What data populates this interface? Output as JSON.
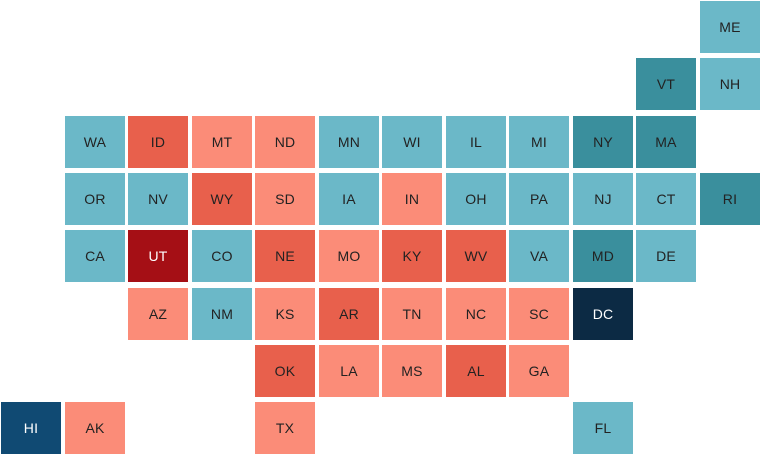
{
  "palette": {
    "dark-red": "#a50f15",
    "red": "#e8604c",
    "light-red": "#fb8c78",
    "light-blue": "#6bb8c8",
    "mid-blue": "#3a8f9d",
    "dark-blue": "#104a73",
    "navy": "#0c2a44"
  },
  "text_colors": {
    "dark-red": "#ffffff",
    "red": "#222222",
    "light-red": "#222222",
    "light-blue": "#222222",
    "mid-blue": "#222222",
    "dark-blue": "#ffffff",
    "navy": "#ffffff"
  },
  "states": [
    {
      "abbr": "ME",
      "row": 0,
      "col": 11,
      "shade": "light-blue"
    },
    {
      "abbr": "VT",
      "row": 1,
      "col": 10,
      "shade": "mid-blue"
    },
    {
      "abbr": "NH",
      "row": 1,
      "col": 11,
      "shade": "light-blue"
    },
    {
      "abbr": "WA",
      "row": 2,
      "col": 1,
      "shade": "light-blue"
    },
    {
      "abbr": "ID",
      "row": 2,
      "col": 2,
      "shade": "red"
    },
    {
      "abbr": "MT",
      "row": 2,
      "col": 3,
      "shade": "light-red"
    },
    {
      "abbr": "ND",
      "row": 2,
      "col": 4,
      "shade": "light-red"
    },
    {
      "abbr": "MN",
      "row": 2,
      "col": 5,
      "shade": "light-blue"
    },
    {
      "abbr": "WI",
      "row": 2,
      "col": 6,
      "shade": "light-blue"
    },
    {
      "abbr": "IL",
      "row": 2,
      "col": 7,
      "shade": "light-blue"
    },
    {
      "abbr": "MI",
      "row": 2,
      "col": 8,
      "shade": "light-blue"
    },
    {
      "abbr": "NY",
      "row": 2,
      "col": 9,
      "shade": "mid-blue"
    },
    {
      "abbr": "MA",
      "row": 2,
      "col": 10,
      "shade": "mid-blue"
    },
    {
      "abbr": "OR",
      "row": 3,
      "col": 1,
      "shade": "light-blue"
    },
    {
      "abbr": "NV",
      "row": 3,
      "col": 2,
      "shade": "light-blue"
    },
    {
      "abbr": "WY",
      "row": 3,
      "col": 3,
      "shade": "red"
    },
    {
      "abbr": "SD",
      "row": 3,
      "col": 4,
      "shade": "light-red"
    },
    {
      "abbr": "IA",
      "row": 3,
      "col": 5,
      "shade": "light-blue"
    },
    {
      "abbr": "IN",
      "row": 3,
      "col": 6,
      "shade": "light-red"
    },
    {
      "abbr": "OH",
      "row": 3,
      "col": 7,
      "shade": "light-blue"
    },
    {
      "abbr": "PA",
      "row": 3,
      "col": 8,
      "shade": "light-blue"
    },
    {
      "abbr": "NJ",
      "row": 3,
      "col": 9,
      "shade": "light-blue"
    },
    {
      "abbr": "CT",
      "row": 3,
      "col": 10,
      "shade": "light-blue"
    },
    {
      "abbr": "RI",
      "row": 3,
      "col": 11,
      "shade": "mid-blue"
    },
    {
      "abbr": "CA",
      "row": 4,
      "col": 1,
      "shade": "light-blue"
    },
    {
      "abbr": "UT",
      "row": 4,
      "col": 2,
      "shade": "dark-red"
    },
    {
      "abbr": "CO",
      "row": 4,
      "col": 3,
      "shade": "light-blue"
    },
    {
      "abbr": "NE",
      "row": 4,
      "col": 4,
      "shade": "red"
    },
    {
      "abbr": "MO",
      "row": 4,
      "col": 5,
      "shade": "light-red"
    },
    {
      "abbr": "KY",
      "row": 4,
      "col": 6,
      "shade": "red"
    },
    {
      "abbr": "WV",
      "row": 4,
      "col": 7,
      "shade": "red"
    },
    {
      "abbr": "VA",
      "row": 4,
      "col": 8,
      "shade": "light-blue"
    },
    {
      "abbr": "MD",
      "row": 4,
      "col": 9,
      "shade": "mid-blue"
    },
    {
      "abbr": "DE",
      "row": 4,
      "col": 10,
      "shade": "light-blue"
    },
    {
      "abbr": "AZ",
      "row": 5,
      "col": 2,
      "shade": "light-red"
    },
    {
      "abbr": "NM",
      "row": 5,
      "col": 3,
      "shade": "light-blue"
    },
    {
      "abbr": "KS",
      "row": 5,
      "col": 4,
      "shade": "light-red"
    },
    {
      "abbr": "AR",
      "row": 5,
      "col": 5,
      "shade": "red"
    },
    {
      "abbr": "TN",
      "row": 5,
      "col": 6,
      "shade": "light-red"
    },
    {
      "abbr": "NC",
      "row": 5,
      "col": 7,
      "shade": "light-red"
    },
    {
      "abbr": "SC",
      "row": 5,
      "col": 8,
      "shade": "light-red"
    },
    {
      "abbr": "DC",
      "row": 5,
      "col": 9,
      "shade": "navy"
    },
    {
      "abbr": "OK",
      "row": 6,
      "col": 4,
      "shade": "red"
    },
    {
      "abbr": "LA",
      "row": 6,
      "col": 5,
      "shade": "light-red"
    },
    {
      "abbr": "MS",
      "row": 6,
      "col": 6,
      "shade": "light-red"
    },
    {
      "abbr": "AL",
      "row": 6,
      "col": 7,
      "shade": "red"
    },
    {
      "abbr": "GA",
      "row": 6,
      "col": 8,
      "shade": "light-red"
    },
    {
      "abbr": "HI",
      "row": 7,
      "col": 0,
      "shade": "dark-blue"
    },
    {
      "abbr": "AK",
      "row": 7,
      "col": 1,
      "shade": "light-red"
    },
    {
      "abbr": "TX",
      "row": 7,
      "col": 4,
      "shade": "light-red"
    },
    {
      "abbr": "FL",
      "row": 7,
      "col": 9,
      "shade": "light-blue"
    }
  ]
}
